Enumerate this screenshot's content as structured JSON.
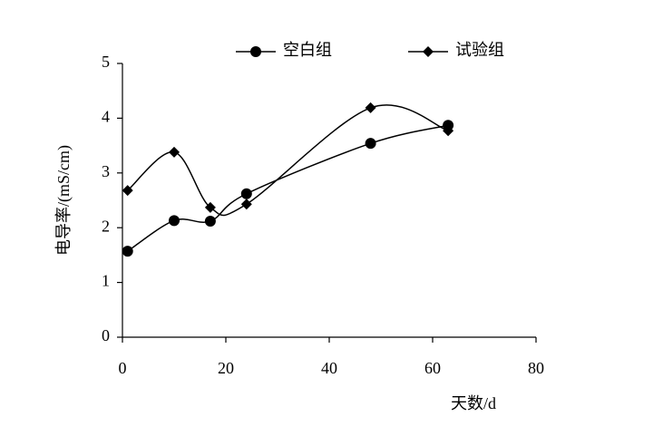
{
  "chart_data": {
    "type": "line",
    "x_label": "天数/d",
    "y_label": "电导率/(mS/cm)",
    "x": [
      1,
      10,
      17,
      24,
      48,
      63
    ],
    "series": [
      {
        "name": "空白组",
        "color": "#000000",
        "marker": "circle",
        "values": [
          1.57,
          2.13,
          2.12,
          2.62,
          3.54,
          3.87
        ]
      },
      {
        "name": "试验组",
        "color": "#000000",
        "marker": "diamond",
        "values": [
          2.68,
          3.38,
          2.37,
          2.43,
          4.19,
          3.77
        ]
      }
    ],
    "xlim": [
      0,
      80
    ],
    "xticks": [
      0,
      20,
      40,
      60,
      80
    ],
    "ylim": [
      0,
      5
    ],
    "yticks": [
      0,
      1,
      2,
      3,
      4,
      5
    ],
    "smooth": true,
    "grid": false,
    "legend": "top"
  }
}
